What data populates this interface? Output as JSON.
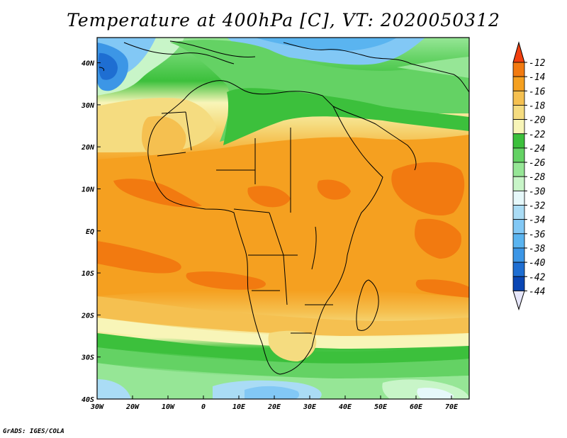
{
  "title": "Temperature at 400hPa [C], VT: 2020050312",
  "credit": "GrADS: IGES/COLA",
  "map": {
    "lon_range": [
      -30,
      75
    ],
    "lat_range": [
      -40,
      46
    ],
    "lon_ticks": [
      {
        "value": -30,
        "label": "30W"
      },
      {
        "value": -20,
        "label": "20W"
      },
      {
        "value": -10,
        "label": "10W"
      },
      {
        "value": 0,
        "label": "0"
      },
      {
        "value": 10,
        "label": "10E"
      },
      {
        "value": 20,
        "label": "20E"
      },
      {
        "value": 30,
        "label": "30E"
      },
      {
        "value": 40,
        "label": "40E"
      },
      {
        "value": 50,
        "label": "50E"
      },
      {
        "value": 60,
        "label": "60E"
      },
      {
        "value": 70,
        "label": "70E"
      }
    ],
    "lat_ticks": [
      {
        "value": 40,
        "label": "40N"
      },
      {
        "value": 30,
        "label": "30N"
      },
      {
        "value": 20,
        "label": "20N"
      },
      {
        "value": 10,
        "label": "10N"
      },
      {
        "value": 0,
        "label": "EQ"
      },
      {
        "value": -10,
        "label": "10S"
      },
      {
        "value": -20,
        "label": "20S"
      },
      {
        "value": -30,
        "label": "30S"
      },
      {
        "value": -40,
        "label": "40S"
      }
    ]
  },
  "colorbar": {
    "labels": [
      "-12",
      "-14",
      "-16",
      "-18",
      "-20",
      "-22",
      "-24",
      "-26",
      "-28",
      "-30",
      "-32",
      "-34",
      "-36",
      "-38",
      "-40",
      "-42",
      "-44"
    ],
    "colors": [
      "#f2400f",
      "#f27a10",
      "#f5a020",
      "#f5c050",
      "#f5dc80",
      "#f8f5b8",
      "#3cc03c",
      "#64d264",
      "#96e696",
      "#c8f5c8",
      "#e6f8fa",
      "#aadcf5",
      "#82c8f5",
      "#5ab4f0",
      "#3c96e6",
      "#1e6ed2",
      "#0a46b4",
      "#0a1e78"
    ]
  }
}
